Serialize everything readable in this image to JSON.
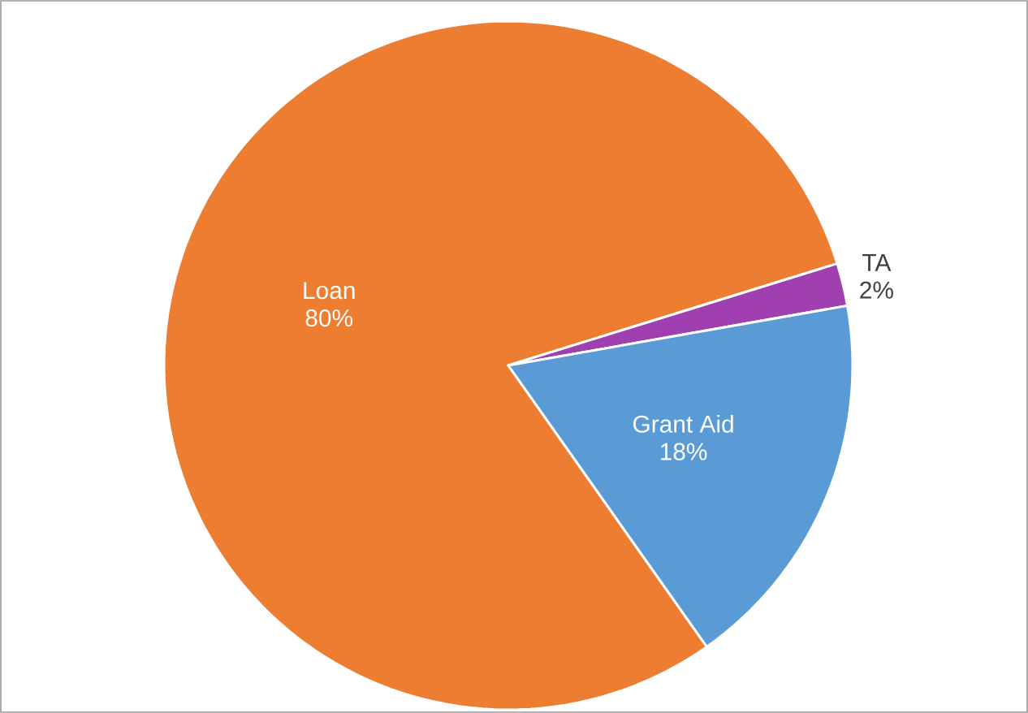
{
  "chart_data": {
    "type": "pie",
    "categories": [
      "Loan",
      "TA",
      "Grant Aid"
    ],
    "values": [
      80,
      2,
      18
    ],
    "value_labels": [
      "80%",
      "2%",
      "18%"
    ],
    "colors": [
      "#ed7d31",
      "#a040b0",
      "#5b9bd5"
    ]
  }
}
